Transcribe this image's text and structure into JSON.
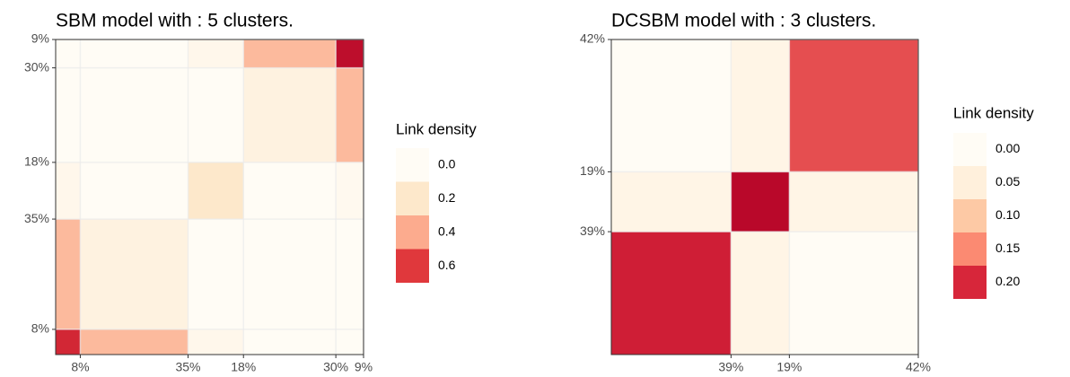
{
  "chart_data": [
    {
      "type": "heatmap",
      "title": "SBM model with : 5 clusters.",
      "clusters": {
        "values": [
          8,
          35,
          18,
          30,
          9
        ],
        "value_labels": [
          "8%",
          "35%",
          "18%",
          "30%",
          "9%"
        ]
      },
      "z": [
        [
          0.66,
          0.35,
          0.05,
          0,
          0
        ],
        [
          0.35,
          0.1,
          0,
          0,
          0
        ],
        [
          0.05,
          0,
          0.2,
          0,
          0.03
        ],
        [
          0,
          0,
          0,
          0.1,
          0.35
        ],
        [
          0,
          0,
          0.05,
          0.35,
          0.75
        ]
      ],
      "zlim": [
        0,
        0.8
      ],
      "zmax_color": "#b10026",
      "legend": {
        "title": "Link density",
        "ticks": [
          {
            "value": 0,
            "label": "0.0"
          },
          0.2,
          0.4,
          0.6
        ],
        "colors": [
          "#fffcf5",
          "#fde8cb",
          "#fcab8e",
          "#e0383c"
        ]
      }
    },
    {
      "type": "heatmap",
      "title": "DCSBM model with : 3 clusters.",
      "clusters": {
        "values": [
          39,
          19,
          42
        ],
        "value_labels": [
          "39%",
          "19%",
          "42%"
        ]
      },
      "z": [
        [
          0.21,
          0.03,
          0
        ],
        [
          0.03,
          0.24,
          0.03
        ],
        [
          0,
          0.03,
          0.18
        ]
      ],
      "zlim": [
        0,
        0.25
      ],
      "zmax_color": "#b10026",
      "legend": {
        "title": "Link density",
        "ticks": [
          {
            "value": 0,
            "label": "0.00"
          },
          {
            "value": 0.05,
            "label": "0.05"
          },
          {
            "value": 0.1,
            "label": "0.10"
          },
          {
            "value": 0.15,
            "label": "0.15"
          },
          {
            "value": 0.2,
            "label": "0.20"
          }
        ],
        "colors": [
          "#fffcf5",
          "#fff0dc",
          "#fdc9a5",
          "#fb8a72",
          "#d7263a"
        ]
      }
    }
  ]
}
